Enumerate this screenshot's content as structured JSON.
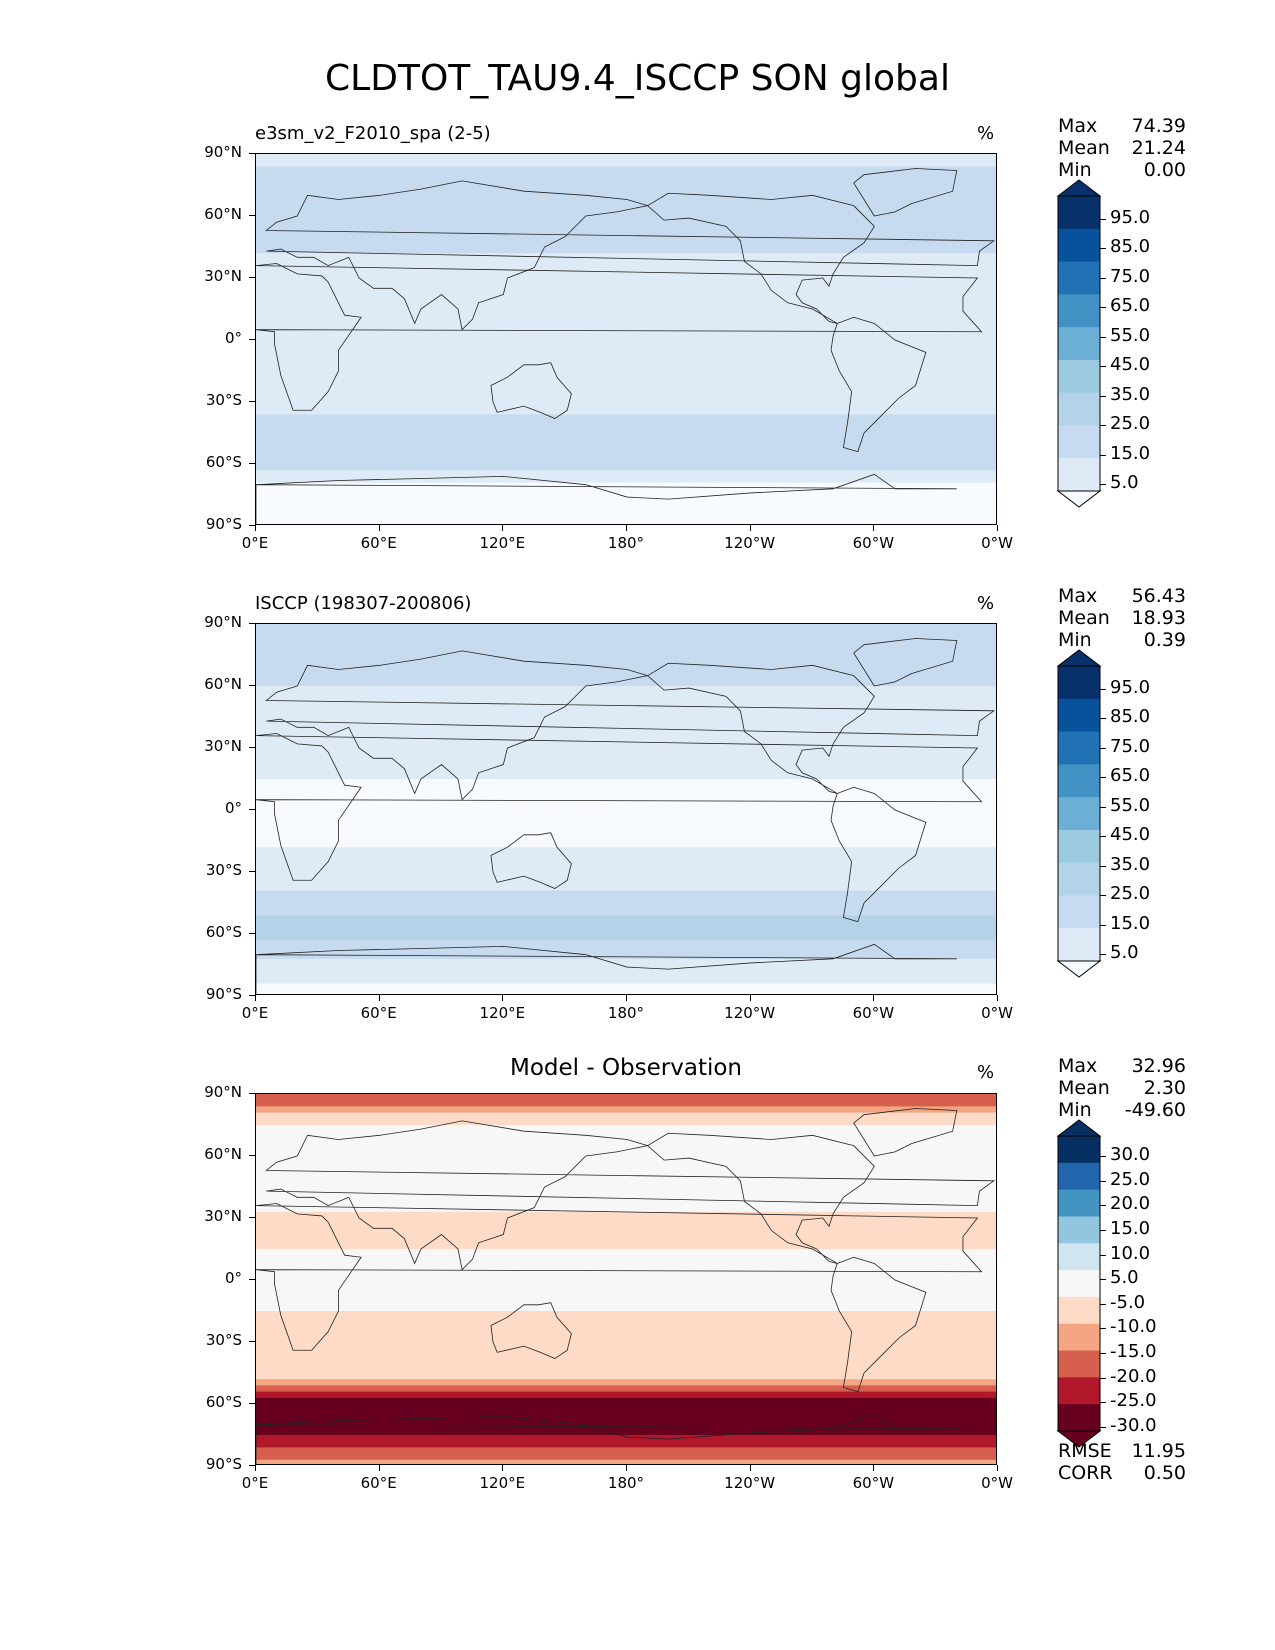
{
  "figure_title": "CLDTOT_TAU9.4_ISCCP SON global",
  "colors": {
    "seq": [
      "#f7fbff",
      "#deebf7",
      "#c6dbef",
      "#b4d3e9",
      "#9ecae1",
      "#6baed6",
      "#4292c6",
      "#2171b5",
      "#08519c",
      "#08306b"
    ],
    "diff": [
      "#67001f",
      "#b2182b",
      "#d6604d",
      "#f4a582",
      "#fddbc7",
      "#f7f7f7",
      "#d1e5f0",
      "#92c5de",
      "#4393c3",
      "#2166ac",
      "#053061"
    ]
  },
  "chart_data": [
    {
      "type": "heatmap",
      "title": "e3sm_v2_F2010_spa (2-5)",
      "units": "%",
      "stats": [
        {
          "label": "Max",
          "value": "74.39"
        },
        {
          "label": "Mean",
          "value": "21.24"
        },
        {
          "label": "Min",
          "value": "0.00"
        }
      ],
      "colorbar_levels": [
        "95.0",
        "85.0",
        "75.0",
        "65.0",
        "55.0",
        "45.0",
        "35.0",
        "25.0",
        "15.0",
        "5.0"
      ],
      "ylabels": [
        "90°N",
        "60°N",
        "30°N",
        "0°",
        "30°S",
        "60°S",
        "90°S"
      ],
      "xlabels": [
        "0°E",
        "60°E",
        "120°E",
        "180°",
        "120°W",
        "60°W",
        "0°W"
      ],
      "zonal_profile": {
        "lat": [
          90,
          75,
          60,
          45,
          30,
          15,
          0,
          -15,
          -30,
          -45,
          -60,
          -75,
          -90
        ],
        "value": [
          20,
          30,
          30,
          28,
          15,
          18,
          22,
          15,
          20,
          35,
          30,
          5,
          2
        ]
      }
    },
    {
      "type": "heatmap",
      "title": "ISCCP (198307-200806)",
      "units": "%",
      "stats": [
        {
          "label": "Max",
          "value": "56.43"
        },
        {
          "label": "Mean",
          "value": "18.93"
        },
        {
          "label": "Min",
          "value": "0.39"
        }
      ],
      "colorbar_levels": [
        "95.0",
        "85.0",
        "75.0",
        "65.0",
        "55.0",
        "45.0",
        "35.0",
        "25.0",
        "15.0",
        "5.0"
      ],
      "ylabels": [
        "90°N",
        "60°N",
        "30°N",
        "0°",
        "30°S",
        "60°S",
        "90°S"
      ],
      "xlabels": [
        "0°E",
        "60°E",
        "120°E",
        "180°",
        "120°W",
        "60°W",
        "0°W"
      ],
      "zonal_profile": {
        "lat": [
          90,
          75,
          60,
          45,
          30,
          15,
          0,
          -15,
          -30,
          -45,
          -60,
          -75,
          -90
        ],
        "value": [
          35,
          28,
          25,
          24,
          18,
          15,
          14,
          14,
          18,
          30,
          40,
          20,
          10
        ]
      }
    },
    {
      "type": "heatmap",
      "title": "Model - Observation",
      "units": "%",
      "stats": [
        {
          "label": "Max",
          "value": "32.96"
        },
        {
          "label": "Mean",
          "value": "2.30"
        },
        {
          "label": "Min",
          "value": "-49.60"
        }
      ],
      "colorbar_levels": [
        "30.0",
        "25.0",
        "20.0",
        "15.0",
        "10.0",
        "5.0",
        "-5.0",
        "-10.0",
        "-15.0",
        "-20.0",
        "-25.0",
        "-30.0"
      ],
      "ylabels": [
        "90°N",
        "60°N",
        "30°N",
        "0°",
        "30°S",
        "60°S",
        "90°S"
      ],
      "xlabels": [
        "0°E",
        "60°E",
        "120°E",
        "180°",
        "120°W",
        "60°W",
        "0°W"
      ],
      "metrics": [
        {
          "label": "RMSE",
          "value": "11.95"
        },
        {
          "label": "CORR",
          "value": "0.50"
        }
      ],
      "zonal_profile": {
        "lat": [
          90,
          75,
          60,
          45,
          30,
          15,
          0,
          -15,
          -30,
          -45,
          -60,
          -75,
          -90
        ],
        "value": [
          -20,
          5,
          8,
          10,
          3,
          5,
          8,
          5,
          0,
          3,
          -40,
          -30,
          -5
        ]
      }
    }
  ]
}
